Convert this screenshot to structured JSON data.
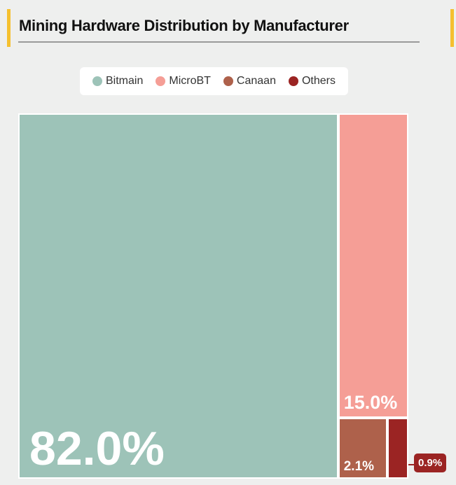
{
  "chart_data": {
    "type": "treemap",
    "title": "Mining Hardware Distribution by Manufacturer",
    "legend_position": "top",
    "series": [
      {
        "name": "Bitmain",
        "value": 82.0,
        "label": "82.0%",
        "color": "#9dc3b8"
      },
      {
        "name": "MicroBT",
        "value": 15.0,
        "label": "15.0%",
        "color": "#f59e96"
      },
      {
        "name": "Canaan",
        "value": 2.1,
        "label": "2.1%",
        "color": "#ae614b"
      },
      {
        "name": "Others",
        "value": 0.9,
        "label": "0.9%",
        "color": "#9b2423"
      }
    ]
  }
}
